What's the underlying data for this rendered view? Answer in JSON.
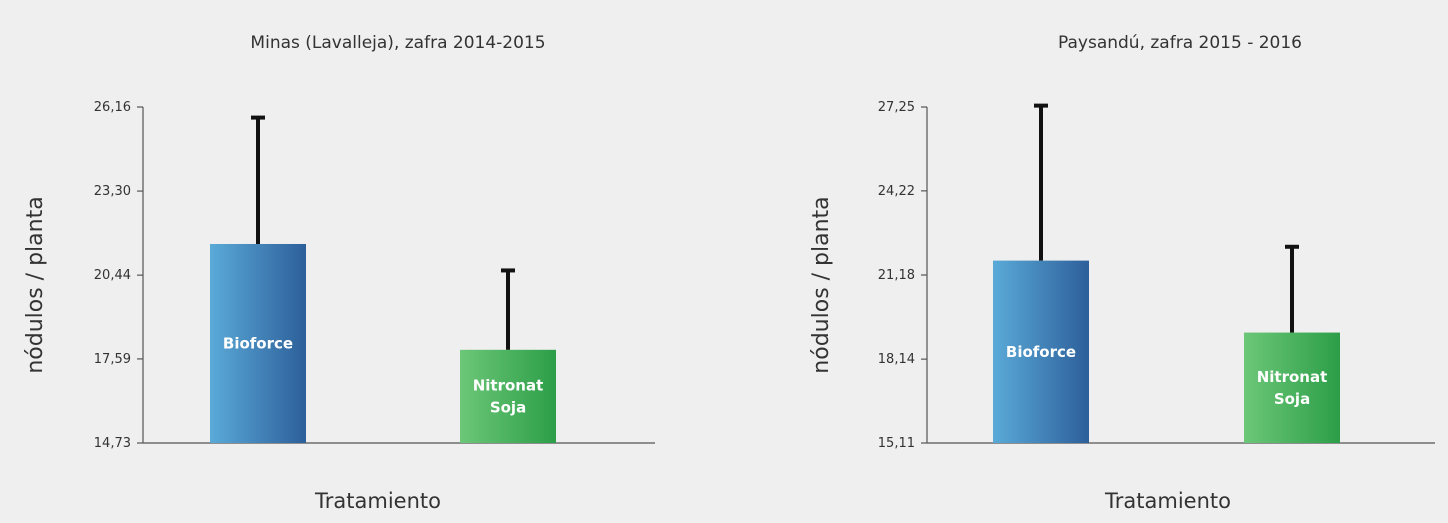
{
  "chart_data": [
    {
      "type": "bar",
      "title": "Minas (Lavalleja), zafra 2014-2015",
      "xlabel": "Tratamiento",
      "ylabel": "nódulos / planta",
      "ylim": [
        14.73,
        26.16
      ],
      "yticks": [
        "14,73",
        "17,59",
        "20,44",
        "23,30",
        "26,16"
      ],
      "ytick_values": [
        14.73,
        17.59,
        20.44,
        23.3,
        26.16
      ],
      "categories": [
        "Bioforce",
        "Nitronat Soja"
      ],
      "bar_labels": [
        [
          "Bioforce"
        ],
        [
          "Nitronat",
          "Soja"
        ]
      ],
      "values": [
        21.5,
        17.9
      ],
      "error_upper": [
        25.8,
        20.6
      ],
      "colors": [
        [
          "#5aaad8",
          "#2d5f9a"
        ],
        [
          "#6cc778",
          "#2c9e48"
        ]
      ],
      "grid": false
    },
    {
      "type": "bar",
      "title": "Paysandú, zafra 2015 - 2016",
      "xlabel": "Tratamiento",
      "ylabel": "nódulos / planta",
      "ylim": [
        15.11,
        27.25
      ],
      "yticks": [
        "15,11",
        "18,14",
        "21,18",
        "24,22",
        "27,25"
      ],
      "ytick_values": [
        15.11,
        18.14,
        21.18,
        24.22,
        27.25
      ],
      "categories": [
        "Bioforce",
        "Nitronat Soja"
      ],
      "bar_labels": [
        [
          "Bioforce"
        ],
        [
          "Nitronat",
          "Soja"
        ]
      ],
      "values": [
        21.7,
        19.1
      ],
      "error_upper": [
        27.3,
        22.2
      ],
      "colors": [
        [
          "#5aaad8",
          "#2d5f9a"
        ],
        [
          "#6cc778",
          "#2c9e48"
        ]
      ],
      "grid": false
    }
  ]
}
